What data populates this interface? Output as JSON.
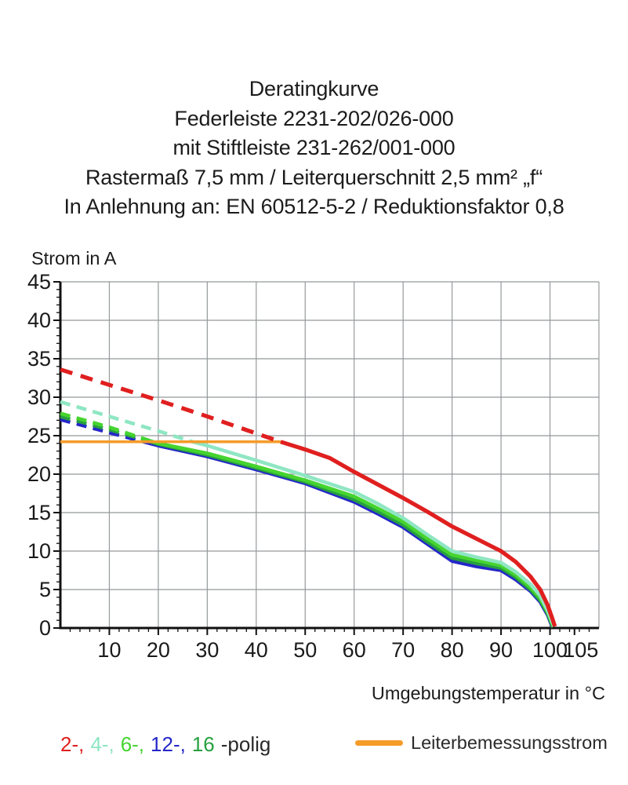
{
  "title": {
    "lines": [
      "Deratingkurve",
      "Federleiste 2231-202/026-000",
      "mit Stiftleiste 231-262/001-000",
      "Rastermaß 7,5 mm / Leiterquerschnitt 2,5 mm² „f“",
      "In Anlehnung an: EN 60512-5-2 / Reduktionsfaktor 0,8"
    ]
  },
  "chart_data": {
    "type": "line",
    "title": "Deratingkurve",
    "xlabel": "Umgebungstemperatur in °C",
    "ylabel": "Strom in A",
    "xlim": [
      0,
      110
    ],
    "ylim": [
      0,
      45
    ],
    "x_major_ticks": [
      10,
      20,
      30,
      40,
      50,
      60,
      70,
      80,
      90,
      100,
      105
    ],
    "x_minor_step": 2,
    "y_major_ticks": [
      0,
      5,
      10,
      15,
      20,
      25,
      30,
      35,
      40,
      45
    ],
    "y_minor_step": 1,
    "grid": true,
    "grid_step_x": 10,
    "grid_step_y": 5,
    "colors": {
      "grid": "#95999b",
      "axis": "#111111",
      "tick_label": "#1a1a1a"
    },
    "rated_current_A": 24.2,
    "series": [
      {
        "name": "12-polig",
        "color": "#2527c8",
        "width": 4.6,
        "dash_pattern": "13 8.5",
        "dashed": [
          [
            0,
            27.1
          ],
          [
            10,
            25.4
          ],
          [
            17,
            24.2
          ]
        ],
        "solid": [
          [
            17,
            24.2
          ],
          [
            20,
            23.7
          ],
          [
            30,
            22.3
          ],
          [
            40,
            20.6
          ],
          [
            50,
            18.8
          ],
          [
            60,
            16.4
          ],
          [
            65,
            14.8
          ],
          [
            70,
            13.1
          ],
          [
            75,
            10.9
          ],
          [
            80,
            8.7
          ],
          [
            85,
            8.0
          ],
          [
            90,
            7.5
          ],
          [
            93,
            6.3
          ],
          [
            96,
            4.8
          ],
          [
            98,
            3.4
          ],
          [
            99.5,
            1.7
          ],
          [
            100.5,
            0.1
          ]
        ]
      },
      {
        "name": "16-polig",
        "color": "#27a03f",
        "width": 4.6,
        "dash_pattern": "13 8.5",
        "dashed": [
          [
            0,
            27.5
          ],
          [
            10,
            25.8
          ],
          [
            18,
            24.3
          ]
        ],
        "solid": [
          [
            18,
            24.3
          ],
          [
            20,
            23.9
          ],
          [
            30,
            22.5
          ],
          [
            40,
            20.8
          ],
          [
            50,
            19.0
          ],
          [
            60,
            16.7
          ],
          [
            65,
            15.1
          ],
          [
            70,
            13.4
          ],
          [
            75,
            11.2
          ],
          [
            80,
            9.1
          ],
          [
            85,
            8.4
          ],
          [
            90,
            7.8
          ],
          [
            93,
            6.6
          ],
          [
            96,
            5.0
          ],
          [
            98,
            3.6
          ],
          [
            99.5,
            1.9
          ],
          [
            100.6,
            0.1
          ]
        ]
      },
      {
        "name": "6-polig",
        "color": "#46d42f",
        "width": 4.6,
        "dash_pattern": "13 8.5",
        "dashed": [
          [
            0,
            27.9
          ],
          [
            10,
            26.1
          ],
          [
            18.5,
            24.3
          ]
        ],
        "solid": [
          [
            18.5,
            24.3
          ],
          [
            20,
            24.0
          ],
          [
            30,
            22.7
          ],
          [
            40,
            21.0
          ],
          [
            50,
            19.2
          ],
          [
            60,
            17.1
          ],
          [
            65,
            15.5
          ],
          [
            70,
            13.8
          ],
          [
            75,
            11.6
          ],
          [
            80,
            9.5
          ],
          [
            85,
            8.8
          ],
          [
            90,
            8.1
          ],
          [
            93,
            6.9
          ],
          [
            96,
            5.3
          ],
          [
            98,
            3.9
          ],
          [
            99.5,
            2.1
          ],
          [
            100.7,
            0.15
          ]
        ]
      },
      {
        "name": "4-polig",
        "color": "#8fe6c3",
        "width": 4.6,
        "dash_pattern": "13 8.5",
        "dashed": [
          [
            0,
            29.4
          ],
          [
            10,
            27.5
          ],
          [
            20,
            25.6
          ],
          [
            27,
            24.2
          ]
        ],
        "solid": [
          [
            27,
            24.2
          ],
          [
            30,
            23.7
          ],
          [
            40,
            21.8
          ],
          [
            50,
            19.8
          ],
          [
            60,
            17.7
          ],
          [
            65,
            16.1
          ],
          [
            70,
            14.3
          ],
          [
            75,
            12.1
          ],
          [
            80,
            10.0
          ],
          [
            85,
            9.2
          ],
          [
            90,
            8.5
          ],
          [
            93,
            7.3
          ],
          [
            96,
            5.7
          ],
          [
            98,
            4.2
          ],
          [
            99.5,
            2.3
          ],
          [
            100.8,
            0.2
          ]
        ]
      },
      {
        "name": "Leiterbemessungsstrom",
        "role": "rated-current",
        "color": "#f59b28",
        "width": 3.5,
        "solid": [
          [
            0,
            24.2
          ],
          [
            45,
            24.2
          ]
        ]
      },
      {
        "name": "2-polig",
        "color": "#e01f1f",
        "width": 5.2,
        "dash_pattern": "16 11",
        "dashed": [
          [
            0,
            33.6
          ],
          [
            10,
            31.6
          ],
          [
            20,
            29.6
          ],
          [
            30,
            27.5
          ],
          [
            40,
            25.3
          ],
          [
            45,
            24.2
          ]
        ],
        "solid": [
          [
            45,
            24.2
          ],
          [
            50,
            23.2
          ],
          [
            55,
            22.1
          ],
          [
            60,
            20.3
          ],
          [
            65,
            18.6
          ],
          [
            70,
            16.9
          ],
          [
            75,
            15.1
          ],
          [
            80,
            13.2
          ],
          [
            85,
            11.6
          ],
          [
            90,
            10.0
          ],
          [
            93,
            8.6
          ],
          [
            96,
            6.7
          ],
          [
            98,
            5.0
          ],
          [
            99.5,
            3.0
          ],
          [
            100.5,
            1.2
          ],
          [
            101,
            0.2
          ]
        ]
      }
    ],
    "legend_position": "bottom"
  },
  "legend": {
    "pole_items": [
      {
        "label": "2-,",
        "color": "#e01f1f"
      },
      {
        "label": "4-,",
        "color": "#8fe6c3"
      },
      {
        "label": "6-,",
        "color": "#46d42f"
      },
      {
        "label": "12-,",
        "color": "#2527c8"
      },
      {
        "label": "16",
        "color": "#27a03f"
      }
    ],
    "pole_suffix": "-polig",
    "rated_current_label": "Leiterbemessungsstrom",
    "rated_current_color": "#f59b28"
  }
}
